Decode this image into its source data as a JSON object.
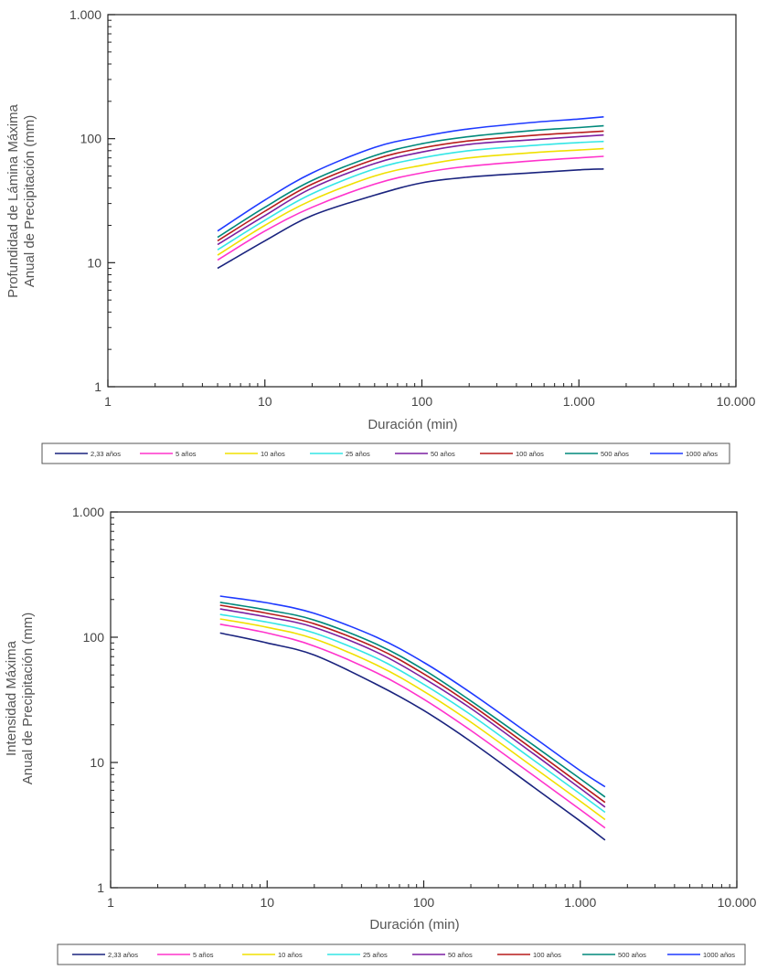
{
  "chart_data": [
    {
      "type": "line",
      "ylabel_lines": [
        "Profundidad de Lámina Máxima",
        "Anual de Precipitación (mm)"
      ],
      "xlabel": "Duración (min)",
      "xscale": "log",
      "yscale": "log",
      "xlim": [
        1,
        10000
      ],
      "ylim": [
        1,
        1000
      ],
      "x_ticks": [
        1,
        10,
        100,
        1000,
        10000
      ],
      "x_tick_labels": [
        "1",
        "10",
        "100",
        "1.000",
        "10.000"
      ],
      "y_ticks": [
        1,
        10,
        100,
        1000
      ],
      "y_tick_labels": [
        "1",
        "10",
        "100",
        "1.000"
      ],
      "legend_position": "bottom",
      "x": [
        5,
        10,
        20,
        50,
        100,
        200,
        500,
        1000,
        1440
      ],
      "series": [
        {
          "name": "2,33 años",
          "color": "#1a237e",
          "values": [
            9,
            15,
            24,
            35,
            44,
            49,
            53,
            56,
            57
          ]
        },
        {
          "name": "5 años",
          "color": "#ff33cc",
          "values": [
            10.5,
            18,
            28,
            43,
            53,
            60,
            66,
            70,
            72
          ]
        },
        {
          "name": "10 años",
          "color": "#f0e000",
          "values": [
            11.5,
            20,
            32,
            50,
            61,
            70,
            77,
            81,
            83
          ]
        },
        {
          "name": "25 años",
          "color": "#33e6e6",
          "values": [
            12.7,
            22,
            36,
            57,
            70,
            80,
            88,
            93,
            95
          ]
        },
        {
          "name": "50 años",
          "color": "#7b1fa2",
          "values": [
            14,
            24,
            40,
            63,
            78,
            90,
            98,
            104,
            107
          ]
        },
        {
          "name": "100 años",
          "color": "#b71c1c",
          "values": [
            15,
            26,
            43,
            68,
            84,
            96,
            106,
            112,
            115
          ]
        },
        {
          "name": "500 años",
          "color": "#00897b",
          "values": [
            16,
            28,
            46,
            73,
            91,
            104,
            116,
            123,
            127
          ]
        },
        {
          "name": "1000 años",
          "color": "#1e3aff",
          "values": [
            18,
            32,
            53,
            85,
            104,
            120,
            135,
            144,
            150
          ]
        }
      ]
    },
    {
      "type": "line",
      "ylabel_lines": [
        "Intensidad Máxima",
        "Anual de Precipitación (mm)"
      ],
      "xlabel": "Duración (min)",
      "xscale": "log",
      "yscale": "log",
      "xlim": [
        1,
        10000
      ],
      "ylim": [
        1,
        1000
      ],
      "x_ticks": [
        1,
        10,
        100,
        1000,
        10000
      ],
      "x_tick_labels": [
        "1",
        "10",
        "100",
        "1.000",
        "10.000"
      ],
      "y_ticks": [
        1,
        10,
        100,
        1000
      ],
      "y_tick_labels": [
        "1",
        "10",
        "100",
        "1.000"
      ],
      "legend_position": "bottom",
      "x": [
        5,
        10,
        20,
        50,
        100,
        200,
        500,
        1000,
        1440
      ],
      "series": [
        {
          "name": "2,33 años",
          "color": "#1a237e",
          "values": [
            108,
            90,
            72,
            42,
            26,
            14.7,
            6.4,
            3.4,
            2.4
          ]
        },
        {
          "name": "5 años",
          "color": "#ff33cc",
          "values": [
            127,
            108,
            85,
            52,
            32,
            18,
            7.9,
            4.2,
            3
          ]
        },
        {
          "name": "10 años",
          "color": "#f0e000",
          "values": [
            140,
            120,
            97,
            60,
            37,
            21,
            9.2,
            4.9,
            3.5
          ]
        },
        {
          "name": "25 años",
          "color": "#33e6e6",
          "values": [
            152,
            132,
            108,
            68,
            42,
            24,
            10.5,
            5.6,
            4
          ]
        },
        {
          "name": "50 años",
          "color": "#7b1fa2",
          "values": [
            168,
            145,
            120,
            76,
            47,
            27,
            11.8,
            6.2,
            4.4
          ]
        },
        {
          "name": "100 años",
          "color": "#b71c1c",
          "values": [
            180,
            155,
            128,
            82,
            51,
            29,
            12.7,
            6.7,
            4.8
          ]
        },
        {
          "name": "500 años",
          "color": "#00897b",
          "values": [
            190,
            165,
            137,
            88,
            55,
            31,
            13.8,
            7.4,
            5.3
          ]
        },
        {
          "name": "1000 años",
          "color": "#1e3aff",
          "values": [
            213,
            188,
            155,
            100,
            63,
            36,
            16,
            8.6,
            6.4
          ]
        }
      ]
    }
  ]
}
